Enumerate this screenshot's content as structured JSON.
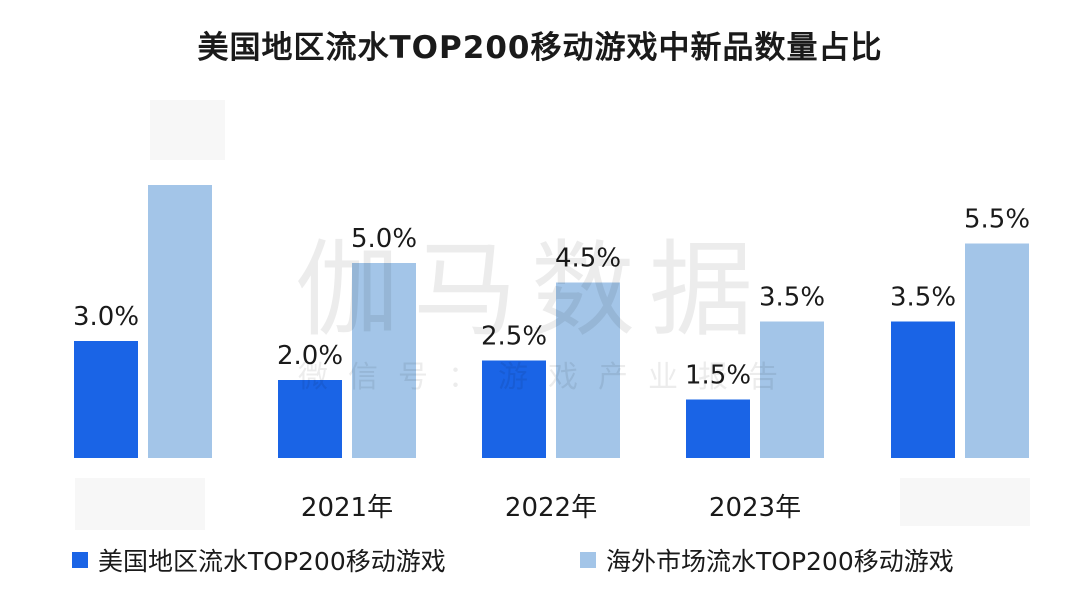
{
  "chart_data": {
    "type": "bar",
    "title": "美国地区流水TOP200移动游戏中新品数量占比",
    "xlabel": "",
    "ylabel": "",
    "ylim": [
      0,
      8
    ],
    "grid": false,
    "legend_position": "bottom",
    "categories": [
      "",
      "2021年",
      "2022年",
      "2023年",
      ""
    ],
    "series": [
      {
        "name": "美国地区流水TOP200移动游戏",
        "color": "#1a64e6",
        "values": [
          3.0,
          2.0,
          2.5,
          1.5,
          3.5
        ],
        "labels": [
          "3.0%",
          "2.0%",
          "2.5%",
          "1.5%",
          "3.5%"
        ]
      },
      {
        "name": "海外市场流水TOP200移动游戏",
        "color": "#a3c5e8",
        "values": [
          7.0,
          5.0,
          4.5,
          3.5,
          5.5
        ],
        "labels": [
          "",
          "5.0%",
          "4.5%",
          "3.5%",
          "5.5%"
        ]
      }
    ]
  },
  "watermark": {
    "main": "伽马数据",
    "sub": "微信号：游戏产业报告"
  }
}
